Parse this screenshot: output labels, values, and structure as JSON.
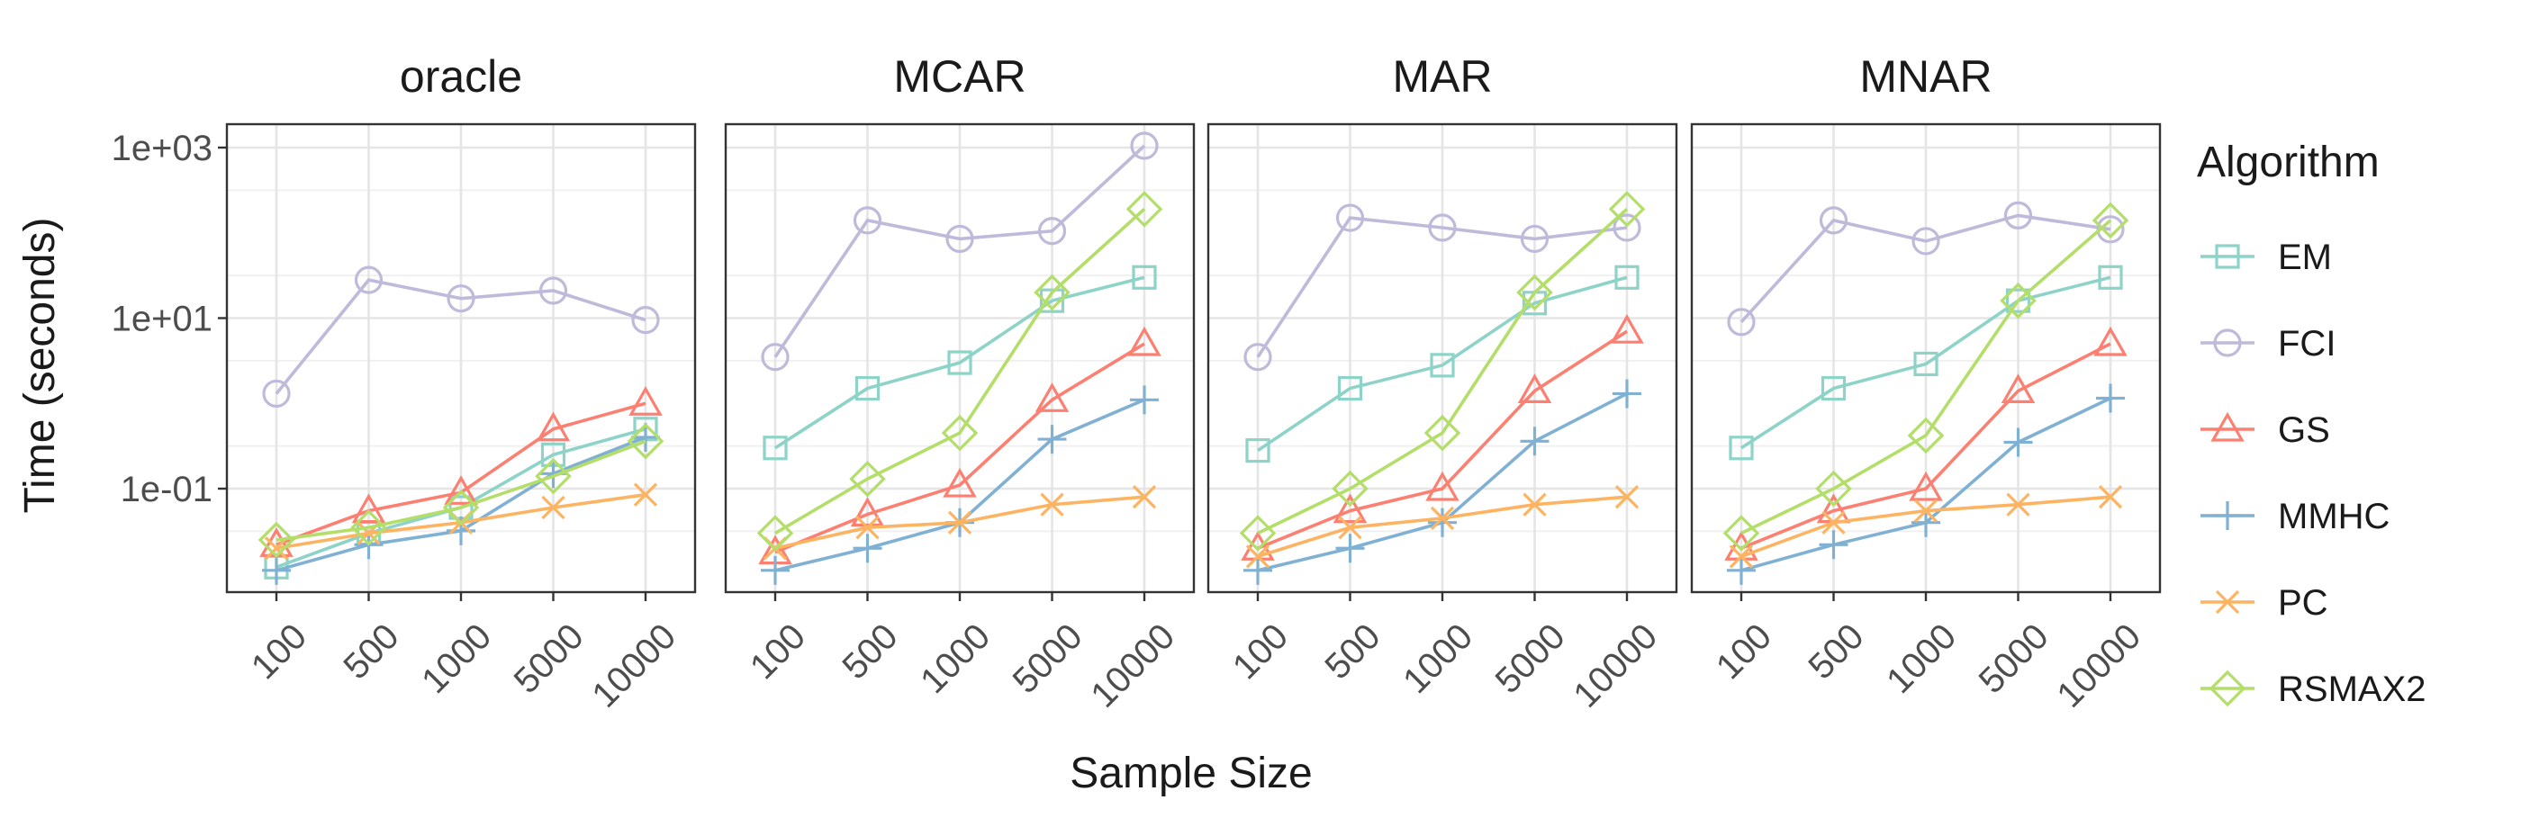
{
  "y_axis_label": "Time (seconds)",
  "x_axis_label": "Sample Size",
  "legend": {
    "title": "Algorithm",
    "items": [
      {
        "name": "EM",
        "color": "#8dd3c7",
        "marker": "square"
      },
      {
        "name": "FCI",
        "color": "#bebada",
        "marker": "circle"
      },
      {
        "name": "GS",
        "color": "#fb8072",
        "marker": "triangle"
      },
      {
        "name": "MMHC",
        "color": "#80b1d3",
        "marker": "plus"
      },
      {
        "name": "PC",
        "color": "#fdb462",
        "marker": "cross"
      },
      {
        "name": "RSMAX2",
        "color": "#b3de69",
        "marker": "diamond"
      }
    ]
  },
  "chart_data": {
    "type": "line",
    "y_scale": "log10",
    "ylim": [
      0.005,
      2000
    ],
    "y_ticks": [
      {
        "value": 1000,
        "label": "1e+03"
      },
      {
        "value": 10,
        "label": "1e+01"
      },
      {
        "value": 0.1,
        "label": "1e-01"
      }
    ],
    "categories": [
      "100",
      "500",
      "1000",
      "5000",
      "10000"
    ],
    "grid": true,
    "legend_position": "right",
    "facets": [
      {
        "title": "oracle",
        "series": [
          {
            "name": "EM",
            "values": [
              0.012,
              0.03,
              0.06,
              0.25,
              0.5
            ]
          },
          {
            "name": "FCI",
            "values": [
              1.3,
              28,
              17,
              21,
              9.5
            ]
          },
          {
            "name": "GS",
            "values": [
              0.022,
              0.055,
              0.09,
              0.5,
              1.0
            ]
          },
          {
            "name": "MMHC",
            "values": [
              0.011,
              0.022,
              0.032,
              0.15,
              0.4
            ]
          },
          {
            "name": "PC",
            "values": [
              0.02,
              0.03,
              0.04,
              0.06,
              0.085
            ]
          },
          {
            "name": "RSMAX2",
            "values": [
              0.025,
              0.035,
              0.06,
              0.14,
              0.36
            ]
          }
        ]
      },
      {
        "title": "MCAR",
        "series": [
          {
            "name": "EM",
            "values": [
              0.3,
              1.5,
              3.0,
              16,
              30
            ]
          },
          {
            "name": "FCI",
            "values": [
              3.5,
              140,
              85,
              105,
              1050
            ]
          },
          {
            "name": "GS",
            "values": [
              0.018,
              0.05,
              0.11,
              1.1,
              5.0
            ]
          },
          {
            "name": "MMHC",
            "values": [
              0.011,
              0.02,
              0.04,
              0.38,
              1.1
            ]
          },
          {
            "name": "PC",
            "values": [
              0.02,
              0.035,
              0.04,
              0.065,
              0.08
            ]
          },
          {
            "name": "RSMAX2",
            "values": [
              0.03,
              0.13,
              0.45,
              20,
              190
            ]
          }
        ]
      },
      {
        "title": "MAR",
        "series": [
          {
            "name": "EM",
            "values": [
              0.28,
              1.5,
              2.8,
              15,
              30
            ]
          },
          {
            "name": "FCI",
            "values": [
              3.5,
              150,
              115,
              85,
              115
            ]
          },
          {
            "name": "GS",
            "values": [
              0.02,
              0.055,
              0.1,
              1.4,
              7.0
            ]
          },
          {
            "name": "MMHC",
            "values": [
              0.011,
              0.02,
              0.04,
              0.36,
              1.3
            ]
          },
          {
            "name": "PC",
            "values": [
              0.016,
              0.035,
              0.045,
              0.065,
              0.08
            ]
          },
          {
            "name": "RSMAX2",
            "values": [
              0.03,
              0.1,
              0.45,
              20,
              190
            ]
          }
        ]
      },
      {
        "title": "MNAR",
        "series": [
          {
            "name": "EM",
            "values": [
              0.3,
              1.5,
              2.9,
              16,
              30
            ]
          },
          {
            "name": "FCI",
            "values": [
              9.0,
              140,
              80,
              160,
              110
            ]
          },
          {
            "name": "GS",
            "values": [
              0.02,
              0.055,
              0.1,
              1.4,
              5.0
            ]
          },
          {
            "name": "MMHC",
            "values": [
              0.011,
              0.022,
              0.04,
              0.35,
              1.15
            ]
          },
          {
            "name": "PC",
            "values": [
              0.016,
              0.04,
              0.055,
              0.065,
              0.08
            ]
          },
          {
            "name": "RSMAX2",
            "values": [
              0.03,
              0.1,
              0.42,
              16,
              140
            ]
          }
        ]
      }
    ]
  }
}
